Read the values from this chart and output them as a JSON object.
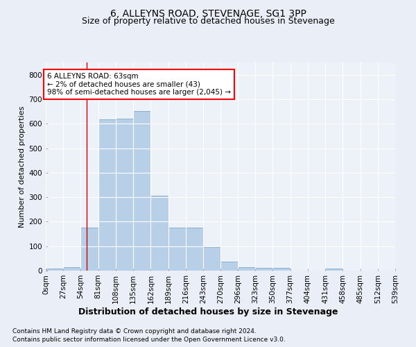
{
  "title": "6, ALLEYNS ROAD, STEVENAGE, SG1 3PP",
  "subtitle": "Size of property relative to detached houses in Stevenage",
  "xlabel": "Distribution of detached houses by size in Stevenage",
  "ylabel": "Number of detached properties",
  "footnote1": "Contains HM Land Registry data © Crown copyright and database right 2024.",
  "footnote2": "Contains public sector information licensed under the Open Government Licence v3.0.",
  "annotation_line1": "6 ALLEYNS ROAD: 63sqm",
  "annotation_line2": "← 2% of detached houses are smaller (43)",
  "annotation_line3": "98% of semi-detached houses are larger (2,045) →",
  "bar_color": "#b8cfe8",
  "bar_edge_color": "#6b9dc2",
  "vline_color": "#cc0000",
  "vline_x": 63,
  "bin_edges": [
    0,
    27,
    54,
    81,
    108,
    135,
    162,
    189,
    216,
    243,
    270,
    296,
    323,
    350,
    377,
    404,
    431,
    458,
    485,
    512,
    539
  ],
  "bar_heights": [
    8,
    13,
    175,
    618,
    620,
    652,
    305,
    175,
    175,
    97,
    38,
    15,
    12,
    10,
    0,
    0,
    9,
    0,
    0,
    0
  ],
  "ylim": [
    0,
    850
  ],
  "yticks": [
    0,
    100,
    200,
    300,
    400,
    500,
    600,
    700,
    800
  ],
  "background_color": "#eaeff7",
  "plot_bg_color": "#edf2f8",
  "grid_color": "#ffffff",
  "title_fontsize": 10,
  "subtitle_fontsize": 9,
  "xlabel_fontsize": 9,
  "ylabel_fontsize": 8,
  "tick_fontsize": 7.5,
  "annotation_fontsize": 7.5,
  "footnote_fontsize": 6.5
}
